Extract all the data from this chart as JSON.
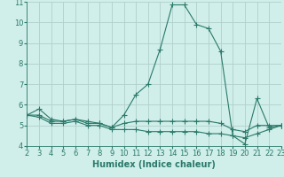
{
  "xlabel": "Humidex (Indice chaleur)",
  "x": [
    2,
    3,
    4,
    5,
    6,
    7,
    8,
    9,
    10,
    11,
    12,
    13,
    14,
    15,
    16,
    17,
    18,
    19,
    20,
    21,
    22,
    23
  ],
  "lines": [
    [
      5.5,
      5.8,
      5.3,
      5.2,
      5.3,
      5.2,
      5.1,
      4.9,
      5.5,
      6.5,
      7.0,
      8.7,
      10.85,
      10.85,
      9.9,
      9.7,
      8.6,
      4.5,
      4.1,
      6.3,
      4.9,
      5.0
    ],
    [
      5.5,
      5.5,
      5.2,
      5.2,
      5.3,
      5.1,
      5.1,
      4.9,
      5.1,
      5.2,
      5.2,
      5.2,
      5.2,
      5.2,
      5.2,
      5.2,
      5.1,
      4.8,
      4.7,
      5.0,
      5.0,
      5.0
    ],
    [
      5.5,
      5.4,
      5.1,
      5.1,
      5.2,
      5.0,
      5.0,
      4.8,
      4.8,
      4.8,
      4.7,
      4.7,
      4.7,
      4.7,
      4.7,
      4.6,
      4.6,
      4.5,
      4.4,
      4.6,
      4.8,
      5.0
    ]
  ],
  "line_color": "#2a7a6a",
  "background_color": "#d0eeea",
  "grid_color": "#b0d0cc",
  "ylim": [
    4,
    11
  ],
  "xlim": [
    2,
    23
  ],
  "yticks": [
    4,
    5,
    6,
    7,
    8,
    9,
    10,
    11
  ],
  "xticks": [
    2,
    3,
    4,
    5,
    6,
    7,
    8,
    9,
    10,
    11,
    12,
    13,
    14,
    15,
    16,
    17,
    18,
    19,
    20,
    21,
    22,
    23
  ],
  "marker": "+",
  "markersize": 4,
  "linewidth": 0.8,
  "xlabel_fontsize": 7,
  "tick_fontsize": 6
}
